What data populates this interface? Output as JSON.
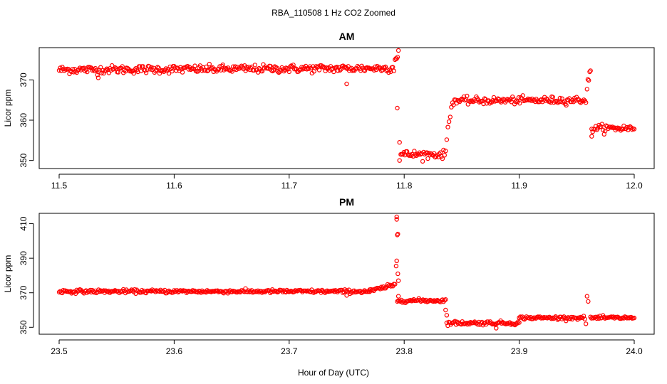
{
  "page_title": "RBA_110508 1 Hz CO2 Zoomed",
  "xlabel": "Hour of Day (UTC)",
  "marker_color": "#ff0000",
  "chart_data": [
    {
      "type": "scatter",
      "title": "AM",
      "ylabel": "Licor ppm",
      "xlim": [
        11.5,
        12.0
      ],
      "ylim": [
        348,
        378
      ],
      "xticks": [
        "11.5",
        "11.6",
        "11.7",
        "11.8",
        "11.9",
        "12.0"
      ],
      "yticks": [
        "350",
        "360",
        "370"
      ],
      "segments": [
        {
          "x": [
            11.5,
            11.791
          ],
          "y": [
            372.5,
            372.9
          ],
          "noise": 0.9
        },
        {
          "x": [
            11.792,
            11.795
          ],
          "y": [
            375.0,
            377.0
          ],
          "noise": 1.2
        },
        {
          "x": [
            11.797,
            11.836
          ],
          "y": [
            351.5,
            351.5
          ],
          "noise": 0.9
        },
        {
          "x": [
            11.837,
            11.841
          ],
          "y": [
            356.0,
            363.0
          ],
          "noise": 1.2
        },
        {
          "x": [
            11.842,
            11.958
          ],
          "y": [
            364.8,
            365.0
          ],
          "noise": 0.8
        },
        {
          "x": [
            11.959,
            11.962
          ],
          "y": [
            368.0,
            372.0
          ],
          "noise": 1.2
        },
        {
          "x": [
            11.963,
            12.0
          ],
          "y": [
            358.0,
            358.0
          ],
          "noise": 0.8
        }
      ],
      "points": [
        [
          11.794,
          363.0
        ],
        [
          11.796,
          354.5
        ],
        [
          11.796,
          350.0
        ],
        [
          11.963,
          356.0
        ],
        [
          11.75,
          369.0
        ],
        [
          11.534,
          370.5
        ]
      ]
    },
    {
      "type": "scatter",
      "title": "PM",
      "ylabel": "Licor ppm",
      "xlim": [
        23.5,
        24.0
      ],
      "ylim": [
        346,
        416
      ],
      "xticks": [
        "23.5",
        "23.6",
        "23.7",
        "23.8",
        "23.9",
        "24.0"
      ],
      "yticks": [
        "350",
        "370",
        "390",
        "410"
      ],
      "segments": [
        {
          "x": [
            23.5,
            23.77
          ],
          "y": [
            370.8,
            370.8
          ],
          "noise": 0.9
        },
        {
          "x": [
            23.77,
            23.792
          ],
          "y": [
            371.0,
            374.5
          ],
          "noise": 1.0
        },
        {
          "x": [
            23.794,
            23.836
          ],
          "y": [
            365.5,
            365.5
          ],
          "noise": 0.9
        },
        {
          "x": [
            23.837,
            23.9
          ],
          "y": [
            352.5,
            352.5
          ],
          "noise": 1.0
        },
        {
          "x": [
            23.9,
            23.957
          ],
          "y": [
            355.5,
            355.5
          ],
          "noise": 0.8
        },
        {
          "x": [
            23.962,
            24.0
          ],
          "y": [
            355.5,
            355.5
          ],
          "noise": 0.8
        }
      ],
      "points": [
        [
          23.7935,
          414.0
        ],
        [
          23.7935,
          412.5
        ],
        [
          23.794,
          403.5
        ],
        [
          23.7945,
          404.0
        ],
        [
          23.7935,
          388.5
        ],
        [
          23.793,
          385.5
        ],
        [
          23.7945,
          381.0
        ],
        [
          23.795,
          377.0
        ],
        [
          23.795,
          368.0
        ],
        [
          23.836,
          360.0
        ],
        [
          23.837,
          357.0
        ],
        [
          23.959,
          368.0
        ],
        [
          23.96,
          365.0
        ],
        [
          23.958,
          352.0
        ],
        [
          23.88,
          349.5
        ],
        [
          23.75,
          368.5
        ]
      ]
    }
  ]
}
